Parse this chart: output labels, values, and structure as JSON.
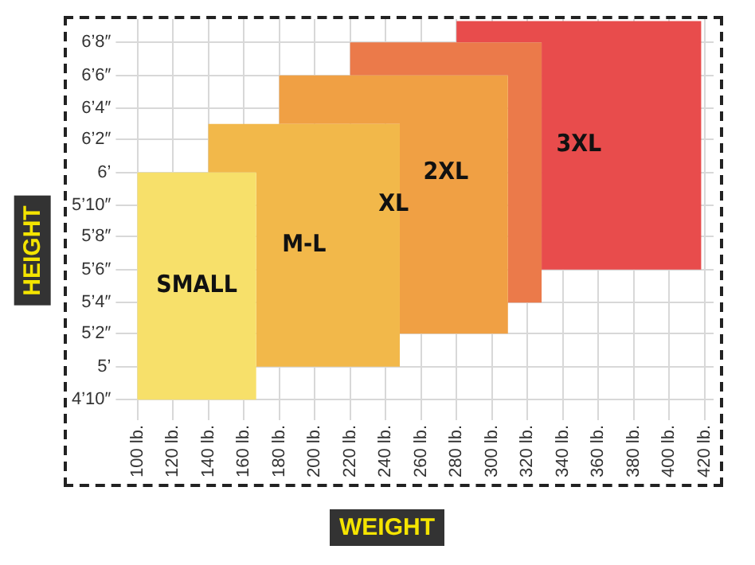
{
  "chart_data": {
    "type": "area",
    "xlabel": "WEIGHT",
    "ylabel": "HEIGHT",
    "series": [
      {
        "name": "SMALL",
        "color": "#f7e06a",
        "x": [
          100,
          167,
          167,
          100
        ],
        "values": [
          6,
          6,
          4.83,
          4.83
        ]
      },
      {
        "name": "M-L",
        "color": "#f2b84a",
        "x": [
          140,
          248,
          248,
          167,
          167,
          140
        ],
        "values": [
          6.25,
          6.25,
          5,
          5,
          6,
          6
        ]
      },
      {
        "name": "XL",
        "color": "#f0a044",
        "x": [
          180,
          309,
          309,
          248,
          248,
          180
        ],
        "values": [
          6.5,
          6.5,
          5.17,
          5.17,
          6.25,
          6.25
        ]
      },
      {
        "name": "2XL",
        "color": "#eb7a4a",
        "x": [
          220,
          328,
          328,
          309,
          309,
          220
        ],
        "values": [
          6.67,
          6.67,
          5.33,
          5.33,
          6.5,
          6.5
        ]
      },
      {
        "name": "3XL",
        "color": "#e84c4c",
        "x": [
          280,
          418,
          418,
          328,
          328,
          280
        ],
        "values": [
          6.78,
          6.78,
          5.5,
          5.5,
          6.67,
          6.67
        ]
      }
    ],
    "xlim": [
      95,
      425
    ],
    "xticks": [
      {
        "value": 100,
        "label": "100 lb."
      },
      {
        "value": 120,
        "label": "120 lb."
      },
      {
        "value": 140,
        "label": "140 lb."
      },
      {
        "value": 160,
        "label": "160 lb."
      },
      {
        "value": 180,
        "label": "180 lb."
      },
      {
        "value": 200,
        "label": "200 lb."
      },
      {
        "value": 220,
        "label": "220 lb."
      },
      {
        "value": 240,
        "label": "240 lb."
      },
      {
        "value": 260,
        "label": "260 lb."
      },
      {
        "value": 280,
        "label": "280 lb."
      },
      {
        "value": 300,
        "label": "300 lb."
      },
      {
        "value": 320,
        "label": "320 lb."
      },
      {
        "value": 340,
        "label": "340 lb."
      },
      {
        "value": 360,
        "label": "360 lb."
      },
      {
        "value": 380,
        "label": "380 lb."
      },
      {
        "value": 400,
        "label": "400 lb."
      },
      {
        "value": 420,
        "label": "420 lb."
      }
    ],
    "ylim": [
      4.79,
      6.79
    ],
    "yticks": [
      {
        "value": 4.83,
        "label": "4’10″"
      },
      {
        "value": 5,
        "label": "5’"
      },
      {
        "value": 5.17,
        "label": "5’2″"
      },
      {
        "value": 5.33,
        "label": "5’4″"
      },
      {
        "value": 5.5,
        "label": "5’6″"
      },
      {
        "value": 5.67,
        "label": "5’8″"
      },
      {
        "value": 5.83,
        "label": "5’10″"
      },
      {
        "value": 6,
        "label": "6’"
      },
      {
        "value": 6.17,
        "label": "6’2″"
      },
      {
        "value": 6.33,
        "label": "6’4″"
      },
      {
        "value": 6.5,
        "label": "6’6″"
      },
      {
        "value": 6.67,
        "label": "6’8″"
      }
    ],
    "grid": true,
    "legend": false
  }
}
